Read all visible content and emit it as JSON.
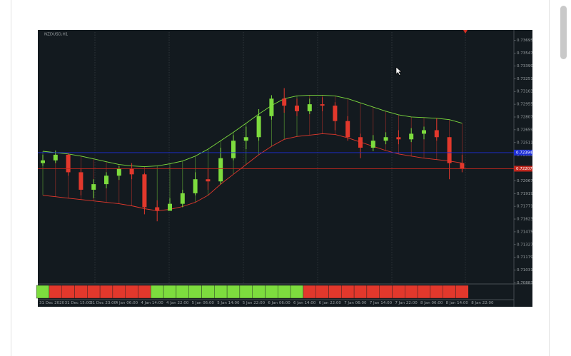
{
  "chart_data": {
    "type": "candlestick",
    "title": "NZDUSD,H1",
    "categories": [
      "31 Dec 2020",
      null,
      "31 Dec 15:00",
      null,
      "31 Dec 23:00",
      null,
      "4 Jan 06:00",
      null,
      "4 Jan 14:00",
      null,
      "4 Jan 22:00",
      null,
      "5 Jan 06:00",
      null,
      "5 Jan 14:00",
      null,
      "5 Jan 22:00",
      null,
      "6 Jan 06:00",
      null,
      "6 Jan 14:00",
      null,
      "6 Jan 22:00",
      null,
      "7 Jan 06:00",
      null,
      "7 Jan 14:00",
      null,
      "7 Jan 22:00",
      null,
      "8 Jan 06:00",
      null,
      "8 Jan 14:00",
      null,
      "8 Jan 22:00",
      null
    ],
    "open": [
      0.72272,
      0.72304,
      0.72369,
      0.72166,
      0.71963,
      0.72028,
      0.72126,
      0.72207,
      0.72142,
      0.7176,
      0.71719,
      0.718,
      0.71922,
      0.72085,
      0.7206,
      0.72329,
      0.72532,
      0.72573,
      0.72817,
      0.7302,
      0.72939,
      0.72874,
      0.72955,
      0.72939,
      0.7276,
      0.72573,
      0.72451,
      0.72532,
      0.72573,
      0.72548,
      0.72613,
      0.72654,
      0.72573,
      0.72272,
      null,
      null
    ],
    "high": [
      0.72369,
      0.72418,
      0.72386,
      0.72207,
      0.72085,
      0.72166,
      0.72239,
      0.72272,
      0.72158,
      0.71841,
      0.71865,
      0.71963,
      0.72166,
      0.72207,
      0.72451,
      0.72597,
      0.72695,
      0.72898,
      0.7306,
      0.73142,
      0.7302,
      0.7302,
      0.73036,
      0.72979,
      0.72817,
      0.72613,
      0.72597,
      0.7263,
      0.72654,
      0.72678,
      0.72695,
      0.72792,
      0.72573,
      0.72369,
      null,
      null
    ],
    "low": [
      0.72239,
      0.72272,
      0.72126,
      0.71898,
      0.71865,
      0.71979,
      0.72077,
      0.72085,
      0.71678,
      0.71597,
      0.71719,
      0.7176,
      0.71898,
      0.71963,
      0.72028,
      0.72304,
      0.72434,
      0.72532,
      0.72776,
      0.72857,
      0.72817,
      0.72841,
      0.72874,
      0.72654,
      0.72532,
      0.72329,
      0.7241,
      0.72491,
      0.72491,
      0.72516,
      0.72548,
      0.72532,
      0.72085,
      0.72166,
      null,
      null
    ],
    "close": [
      0.72304,
      0.72369,
      0.72166,
      0.71963,
      0.72028,
      0.72126,
      0.72207,
      0.72142,
      0.7176,
      0.71719,
      0.718,
      0.71922,
      0.72085,
      0.7206,
      0.72329,
      0.72532,
      0.72573,
      0.72817,
      0.7302,
      0.72939,
      0.72874,
      0.72955,
      0.72939,
      0.7276,
      0.72573,
      0.72451,
      0.72532,
      0.72573,
      0.72548,
      0.72613,
      0.72654,
      0.72573,
      0.72272,
      0.72207,
      null,
      null
    ],
    "upper": [
      0.7241,
      0.72394,
      0.72378,
      0.72353,
      0.72321,
      0.72288,
      0.72256,
      0.72239,
      0.72231,
      0.72239,
      0.72264,
      0.72296,
      0.72353,
      0.72434,
      0.72532,
      0.7263,
      0.72735,
      0.72841,
      0.72939,
      0.7302,
      0.73052,
      0.7306,
      0.7306,
      0.73052,
      0.7302,
      0.72971,
      0.72922,
      0.72874,
      0.72833,
      0.72808,
      0.728,
      0.72792,
      0.72776,
      0.72735,
      null,
      null
    ],
    "lower": [
      0.71898,
      0.71882,
      0.71865,
      0.71849,
      0.71833,
      0.71817,
      0.718,
      0.71776,
      0.71743,
      0.71719,
      0.71735,
      0.71768,
      0.71817,
      0.71898,
      0.72028,
      0.72142,
      0.72256,
      0.72369,
      0.72467,
      0.72548,
      0.72581,
      0.72597,
      0.72613,
      0.72605,
      0.72565,
      0.72516,
      0.72467,
      0.72418,
      0.72378,
      0.72353,
      0.72329,
      0.72313,
      0.72296,
      0.72272,
      null,
      null
    ],
    "signal": [
      1,
      -1,
      -1,
      -1,
      -1,
      -1,
      -1,
      -1,
      -1,
      1,
      1,
      1,
      1,
      1,
      1,
      1,
      1,
      1,
      1,
      1,
      1,
      -1,
      -1,
      -1,
      -1,
      -1,
      -1,
      -1,
      -1,
      -1,
      -1,
      -1,
      -1,
      -1,
      null,
      null
    ],
    "up_color": "#7ddc3e",
    "down_color": "#e2382c",
    "background": "#131a1f",
    "ylim": [
      0.7087,
      0.73792
    ],
    "yticks": [
      0.73695,
      0.73547,
      0.73399,
      0.73251,
      0.73103,
      0.72955,
      0.72807,
      0.72659,
      0.72511,
      0.72363,
      0.72215,
      0.72067,
      0.71919,
      0.71771,
      0.71623,
      0.71475,
      0.71327,
      0.71179,
      0.71031,
      0.70883
    ],
    "price_lines": [
      {
        "value": 0.72394,
        "color": "#1e2fd6"
      },
      {
        "value": 0.72207,
        "color": "#c0271e"
      }
    ]
  }
}
